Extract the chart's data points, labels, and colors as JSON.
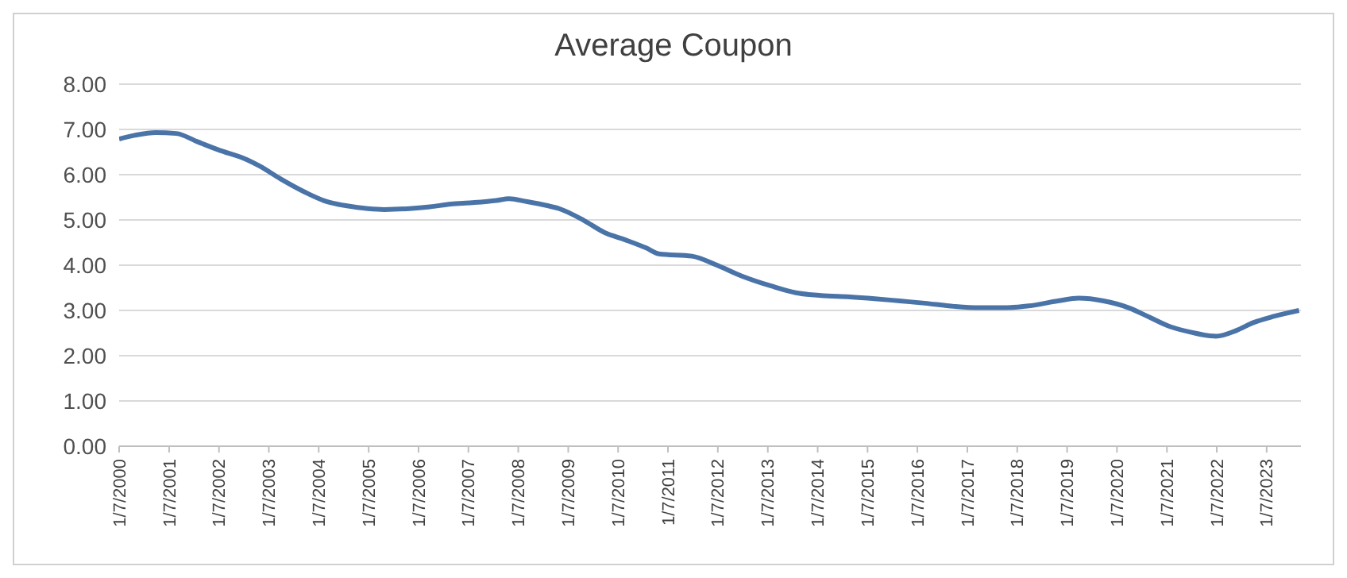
{
  "chart_data": {
    "type": "line",
    "title": "Average Coupon",
    "x": [
      "2000-01-07",
      "2000-05",
      "2000-10",
      "2001-03",
      "2001-08",
      "2002-01",
      "2002-08",
      "2002-11",
      "2003-04",
      "2003-10",
      "2004-03",
      "2004-08",
      "2005-01",
      "2005-05",
      "2005-11",
      "2006-04",
      "2006-09",
      "2007-02",
      "2007-08",
      "2007-11",
      "2008-03",
      "2008-08",
      "2008-11",
      "2009-05",
      "2009-10",
      "2010-03",
      "2010-08",
      "2010-11",
      "2011-07",
      "2012-01",
      "2012-07",
      "2013-02",
      "2013-08",
      "2014-02",
      "2014-09",
      "2015-03",
      "2015-09",
      "2016-03",
      "2016-10",
      "2017-04",
      "2017-10",
      "2018-04",
      "2018-11",
      "2019-04",
      "2019-10",
      "2020-04",
      "2020-09",
      "2021-02",
      "2021-07",
      "2022-01",
      "2022-06",
      "2022-10",
      "2023-03",
      "2023-09"
    ],
    "series": [
      {
        "color": "#4a74a8",
        "values": [
          6.79,
          6.87,
          6.93,
          6.91,
          6.73,
          6.55,
          6.33,
          6.19,
          5.91,
          5.61,
          5.41,
          5.31,
          5.25,
          5.23,
          5.25,
          5.29,
          5.35,
          5.38,
          5.43,
          5.47,
          5.41,
          5.32,
          5.25,
          4.99,
          4.72,
          4.56,
          4.38,
          4.25,
          4.2,
          4.0,
          3.76,
          3.54,
          3.39,
          3.33,
          3.3,
          3.26,
          3.21,
          3.16,
          3.09,
          3.06,
          3.06,
          3.1,
          3.21,
          3.27,
          3.21,
          3.06,
          2.85,
          2.64,
          2.52,
          2.43,
          2.56,
          2.73,
          2.87,
          3.0
        ]
      }
    ],
    "xlim": [
      "2000-01-07",
      "2023-09-15"
    ],
    "xticks": [
      {
        "value": "2000-01-07",
        "label": "1/7/2000"
      },
      {
        "value": "2001-01-07",
        "label": "1/7/2001"
      },
      {
        "value": "2002-01-07",
        "label": "1/7/2002"
      },
      {
        "value": "2003-01-07",
        "label": "1/7/2003"
      },
      {
        "value": "2004-01-07",
        "label": "1/7/2004"
      },
      {
        "value": "2005-01-07",
        "label": "1/7/2005"
      },
      {
        "value": "2006-01-07",
        "label": "1/7/2006"
      },
      {
        "value": "2007-01-07",
        "label": "1/7/2007"
      },
      {
        "value": "2008-01-07",
        "label": "1/7/2008"
      },
      {
        "value": "2009-01-07",
        "label": "1/7/2009"
      },
      {
        "value": "2010-01-07",
        "label": "1/7/2010"
      },
      {
        "value": "2011-01-07",
        "label": "1/7/2011"
      },
      {
        "value": "2012-01-07",
        "label": "1/7/2012"
      },
      {
        "value": "2013-01-07",
        "label": "1/7/2013"
      },
      {
        "value": "2014-01-07",
        "label": "1/7/2014"
      },
      {
        "value": "2015-01-07",
        "label": "1/7/2015"
      },
      {
        "value": "2016-01-07",
        "label": "1/7/2016"
      },
      {
        "value": "2017-01-07",
        "label": "1/7/2017"
      },
      {
        "value": "2018-01-07",
        "label": "1/7/2018"
      },
      {
        "value": "2019-01-07",
        "label": "1/7/2019"
      },
      {
        "value": "2020-01-07",
        "label": "1/7/2020"
      },
      {
        "value": "2021-01-07",
        "label": "1/7/2021"
      },
      {
        "value": "2022-01-07",
        "label": "1/7/2022"
      },
      {
        "value": "2023-01-07",
        "label": "1/7/2023"
      }
    ],
    "ylim": [
      0,
      8
    ],
    "yticks": [
      {
        "value": 0,
        "label": "0.00"
      },
      {
        "value": 1,
        "label": "1.00"
      },
      {
        "value": 2,
        "label": "2.00"
      },
      {
        "value": 3,
        "label": "3.00"
      },
      {
        "value": 4,
        "label": "4.00"
      },
      {
        "value": 5,
        "label": "5.00"
      },
      {
        "value": 6,
        "label": "6.00"
      },
      {
        "value": 7,
        "label": "7.00"
      },
      {
        "value": 8,
        "label": "8.00"
      }
    ],
    "grid": "y",
    "legend": false,
    "marker": "none",
    "line_style": "solid"
  }
}
